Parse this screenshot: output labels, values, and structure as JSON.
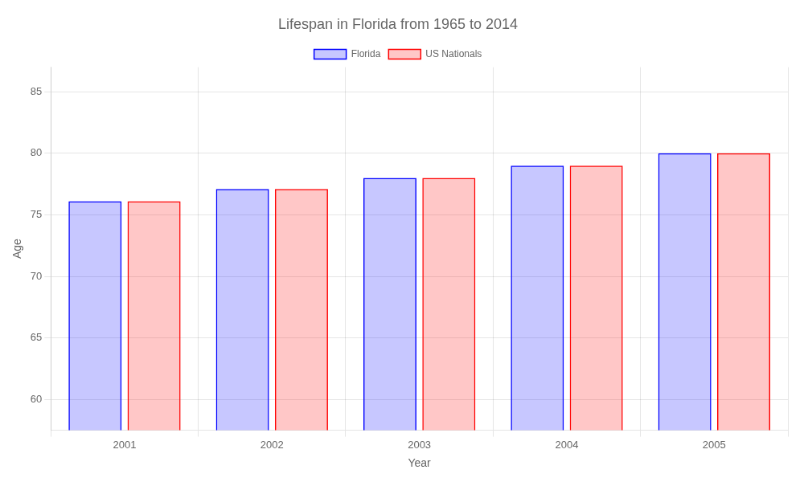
{
  "chart_data": {
    "type": "bar",
    "title": "Lifespan in Florida from 1965 to 2014",
    "xlabel": "Year",
    "ylabel": "Age",
    "categories": [
      "2001",
      "2002",
      "2003",
      "2004",
      "2005"
    ],
    "series": [
      {
        "name": "Florida",
        "color": "#0000ff",
        "values": [
          76.1,
          77.1,
          78.0,
          79.0,
          80.0
        ]
      },
      {
        "name": "US Nationals",
        "color": "#ff0000",
        "values": [
          76.1,
          77.1,
          78.0,
          79.0,
          80.0
        ]
      }
    ],
    "ylim": [
      57.5,
      87
    ],
    "yticks": [
      60,
      65,
      70,
      75,
      80,
      85
    ],
    "grid": true,
    "legend": "top"
  }
}
